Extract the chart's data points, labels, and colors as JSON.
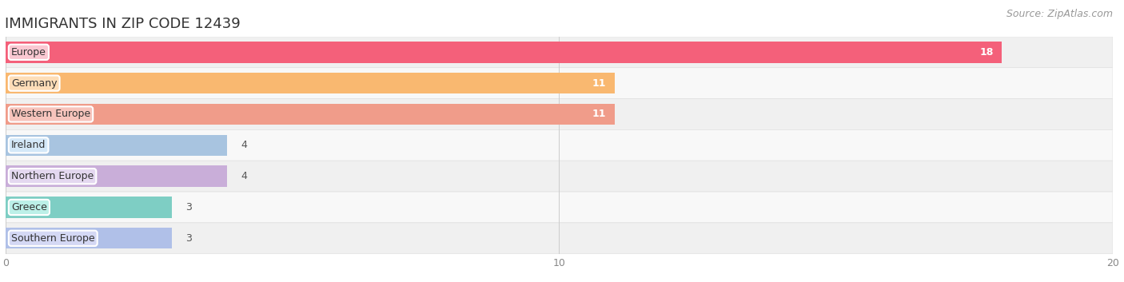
{
  "title": "IMMIGRANTS IN ZIP CODE 12439",
  "source": "Source: ZipAtlas.com",
  "categories": [
    "Europe",
    "Germany",
    "Western Europe",
    "Ireland",
    "Northern Europe",
    "Greece",
    "Southern Europe"
  ],
  "values": [
    18,
    11,
    11,
    4,
    4,
    3,
    3
  ],
  "bar_colors": [
    "#F4607A",
    "#F9B870",
    "#F09C8A",
    "#A8C4E0",
    "#C9AED9",
    "#7ECEC4",
    "#B0C0E8"
  ],
  "label_bg_colors": [
    "#FAC8D2",
    "#FDDDB8",
    "#F7C4BC",
    "#D4E8F8",
    "#E4D8F0",
    "#BCF0E8",
    "#D4D8F4"
  ],
  "xlim": [
    0,
    20
  ],
  "xticks": [
    0,
    10,
    20
  ],
  "bar_height": 0.68,
  "background_color": "#ffffff",
  "title_fontsize": 13,
  "label_fontsize": 9,
  "value_fontsize": 9,
  "source_fontsize": 9
}
